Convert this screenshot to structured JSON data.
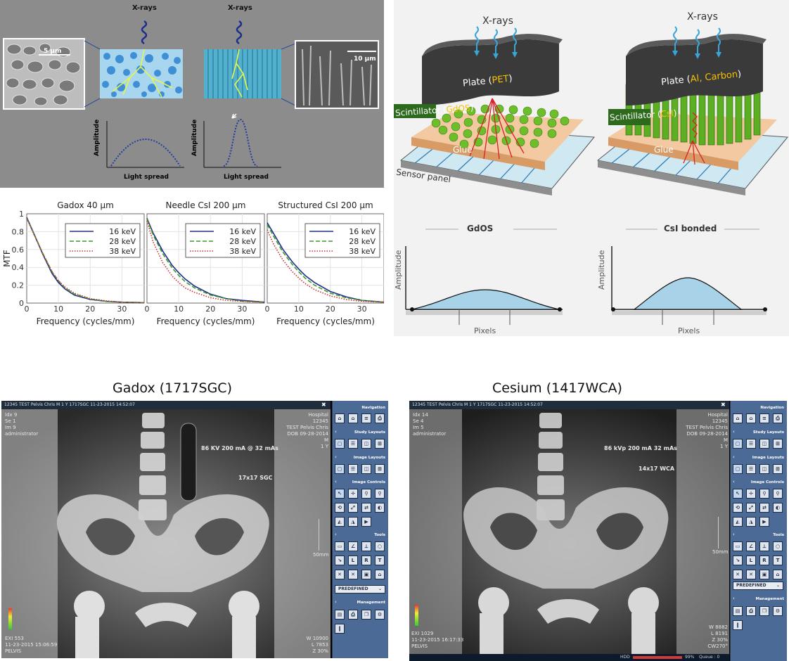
{
  "p1": {
    "xrays1": "X-rays",
    "xrays2": "X-rays",
    "scale1": "5 µm",
    "scale2": "10 µm",
    "amp": "Amplitude",
    "spread": "Light spread"
  },
  "p2": {
    "xrays": "X-rays",
    "plate1": "Plate (PET)",
    "plate1a": "Plate (",
    "plate1b": "PET",
    "plate2a": "Plate (",
    "plate2b": "Al, Carbon",
    "scint1a": "Scintillator (",
    "scint1b": "GdOS",
    "scint2a": "Scintillator (",
    "scint2b": "CsI",
    "glue": "Glue",
    "sensor": "Sensor panel",
    "gdos": "GdOS",
    "csi": "CsI bonded",
    "amp": "Amplitude",
    "pixels": "Pixels",
    "colors": {
      "blue": "#3aa6d8",
      "green": "#6cbf2a",
      "yellow": "#f7c200",
      "plate": "#3a3a3a",
      "glue": "#e4b487",
      "curve": "#a8d2e8"
    }
  },
  "chart_data": [
    {
      "type": "line",
      "title": "Gadox 40 µm",
      "xlabel": "Frequency (cycles/mm)",
      "ylabel": "MTF",
      "xlim": [
        0,
        37
      ],
      "ylim": [
        0,
        1
      ],
      "xticks": [
        0,
        10,
        20,
        30
      ],
      "yticks": [
        0,
        0.2,
        0.4,
        0.6,
        0.8,
        1
      ],
      "legend": "top-right",
      "grid": true,
      "series": [
        {
          "name": "16 keV",
          "style": "solid",
          "color": "#1f2f8a",
          "x": [
            0,
            2,
            5,
            8,
            10,
            12,
            15,
            20,
            25,
            30,
            37
          ],
          "y": [
            0.96,
            0.8,
            0.55,
            0.33,
            0.23,
            0.16,
            0.09,
            0.04,
            0.02,
            0.01,
            0.005
          ]
        },
        {
          "name": "28 keV",
          "style": "dashed",
          "color": "#3c9a2a",
          "x": [
            0,
            2,
            5,
            8,
            10,
            12,
            15,
            20,
            25,
            30,
            37
          ],
          "y": [
            0.95,
            0.8,
            0.56,
            0.35,
            0.25,
            0.17,
            0.1,
            0.045,
            0.02,
            0.01,
            0.005
          ]
        },
        {
          "name": "38 keV",
          "style": "dotted",
          "color": "#c83030",
          "x": [
            0,
            2,
            5,
            8,
            10,
            12,
            15,
            20,
            25,
            30,
            37
          ],
          "y": [
            0.95,
            0.79,
            0.56,
            0.35,
            0.25,
            0.18,
            0.11,
            0.05,
            0.025,
            0.01,
            0.005
          ]
        }
      ]
    },
    {
      "type": "line",
      "title": "Needle CsI 200 µm",
      "xlabel": "Frequency (cycles/mm)",
      "ylabel": "",
      "xlim": [
        0,
        37
      ],
      "ylim": [
        0,
        1
      ],
      "xticks": [
        0,
        10,
        20,
        30
      ],
      "yticks": [],
      "legend": "top-right",
      "grid": true,
      "series": [
        {
          "name": "16 keV",
          "style": "solid",
          "color": "#1f2f8a",
          "x": [
            0,
            2,
            5,
            8,
            10,
            12,
            15,
            20,
            25,
            30,
            37
          ],
          "y": [
            0.95,
            0.78,
            0.58,
            0.42,
            0.34,
            0.27,
            0.19,
            0.1,
            0.05,
            0.03,
            0.01
          ]
        },
        {
          "name": "28 keV",
          "style": "dashed",
          "color": "#3c9a2a",
          "x": [
            0,
            2,
            5,
            8,
            10,
            12,
            15,
            20,
            25,
            30,
            37
          ],
          "y": [
            0.94,
            0.76,
            0.55,
            0.39,
            0.31,
            0.24,
            0.17,
            0.09,
            0.05,
            0.02,
            0.01
          ]
        },
        {
          "name": "38 keV",
          "style": "dotted",
          "color": "#c83030",
          "x": [
            0,
            2,
            5,
            8,
            10,
            12,
            15,
            20,
            25,
            30,
            37
          ],
          "y": [
            0.92,
            0.68,
            0.45,
            0.3,
            0.23,
            0.17,
            0.12,
            0.06,
            0.03,
            0.02,
            0.01
          ]
        }
      ]
    },
    {
      "type": "line",
      "title": "Structured CsI 200 µm",
      "xlabel": "Frequency (cycles/mm)",
      "ylabel": "",
      "xlim": [
        0,
        37
      ],
      "ylim": [
        0,
        1
      ],
      "xticks": [
        0,
        10,
        20,
        30
      ],
      "yticks": [],
      "legend": "top-right",
      "grid": true,
      "series": [
        {
          "name": "16 keV",
          "style": "solid",
          "color": "#1f2f8a",
          "x": [
            0,
            2,
            5,
            8,
            10,
            12,
            15,
            20,
            25,
            30,
            37
          ],
          "y": [
            0.9,
            0.78,
            0.6,
            0.46,
            0.38,
            0.31,
            0.23,
            0.13,
            0.07,
            0.03,
            0.01
          ]
        },
        {
          "name": "28 keV",
          "style": "dashed",
          "color": "#3c9a2a",
          "x": [
            0,
            2,
            5,
            8,
            10,
            12,
            15,
            20,
            25,
            30,
            37
          ],
          "y": [
            0.88,
            0.75,
            0.57,
            0.43,
            0.35,
            0.28,
            0.2,
            0.11,
            0.06,
            0.03,
            0.01
          ]
        },
        {
          "name": "38 keV",
          "style": "dotted",
          "color": "#c83030",
          "x": [
            0,
            2,
            5,
            8,
            10,
            12,
            15,
            20,
            25,
            30,
            37
          ],
          "y": [
            0.82,
            0.66,
            0.48,
            0.35,
            0.28,
            0.22,
            0.15,
            0.08,
            0.04,
            0.02,
            0.01
          ]
        }
      ]
    }
  ],
  "labels": {
    "gadox": "Gadox (1717SGC)",
    "cesium": "Cesium (1417WCA)"
  },
  "viewerL": {
    "topbar": "12345    TEST Pelvis Chris    M    1 Y    1717SGC    11-23-2015    14:52:07",
    "tl": [
      "Idx 9",
      "Se 1",
      "Im 9",
      "administrator"
    ],
    "tr": [
      "Hospital",
      "12345",
      "TEST Pelvis Chris",
      "DOB 09-28-2014",
      "M",
      "1 Y"
    ],
    "expo": "86 KV 200 mA @ 32 mAs",
    "size": "17x17 SGC",
    "scale": "50mm",
    "bl": [
      "EXI 553",
      "11-23-2015 15:06:59",
      "PELVIS"
    ],
    "br": [
      "W 10900",
      "L 7853",
      "Z 30%"
    ]
  },
  "viewerR": {
    "topbar": "12345    TEST Pelvis Chris    M    1 Y    1717SGC    11-23-2015    14:52:07",
    "tl": [
      "Idx 14",
      "Se 4",
      "Im 5",
      "administrator"
    ],
    "tr": [
      "Hospital",
      "12345",
      "TEST Pelvis Chris",
      "DOB 09-28-2014",
      "M",
      "1 Y"
    ],
    "expo": "86 kVp  200 mA 32 mAs",
    "size": "14x17 WCA",
    "scale": "50mm",
    "bl": [
      "EXI 1029",
      "11-23-2015 16:17:33",
      "PELVIS"
    ],
    "br": [
      "W 8882",
      "L 8191",
      "Z 30%",
      "CW270°"
    ],
    "hdd": "HDD",
    "hddpct": "99%",
    "queue": "Queue : 0"
  },
  "sidebar": {
    "navigation": "Navigation",
    "study": "Study Layouts",
    "image": "Image Layouts",
    "controls": "Image Controls",
    "tools": "Tools",
    "predefined": "PREDEFINED",
    "management": "Management",
    "toolL": "L",
    "toolR": "R",
    "toolT": "T"
  }
}
